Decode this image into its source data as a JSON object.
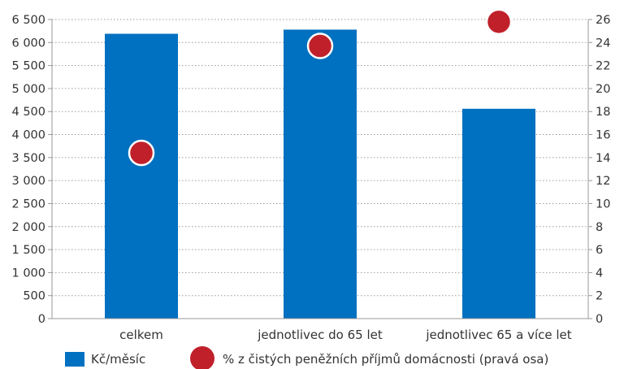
{
  "chart_data": {
    "type": "bar",
    "categories": [
      "celkem",
      "jednotlivec do 65 let",
      "jednotlivec 65 a více let"
    ],
    "series": [
      {
        "name": "Kč/měsíc",
        "type": "bar",
        "axis": "left",
        "values": [
          6190,
          6280,
          4560
        ]
      },
      {
        "name": "% z čistých peněžních příjmů domácnosti (pravá osa)",
        "type": "scatter",
        "axis": "right",
        "values": [
          14.4,
          23.7,
          25.8
        ]
      }
    ],
    "y_left": {
      "min": 0,
      "max": 6500,
      "step": 500,
      "tick_labels": [
        "0",
        "500",
        "1 000",
        "1 500",
        "2 000",
        "2 500",
        "3 000",
        "3 500",
        "4 000",
        "4 500",
        "5 000",
        "5 500",
        "6 000",
        "6 500"
      ]
    },
    "y_right": {
      "min": 0,
      "max": 26,
      "step": 2,
      "tick_labels": [
        "0",
        "2",
        "4",
        "6",
        "8",
        "10",
        "12",
        "14",
        "16",
        "18",
        "20",
        "22",
        "24",
        "26"
      ]
    },
    "grid": "dotted-horizontal",
    "legend_position": "bottom",
    "colors": {
      "bar": "#0070c0",
      "marker": "#c0202a",
      "marker_edge": "#ffffff",
      "grid": "#9a9a9a",
      "axis": "#9a9a9a"
    }
  }
}
